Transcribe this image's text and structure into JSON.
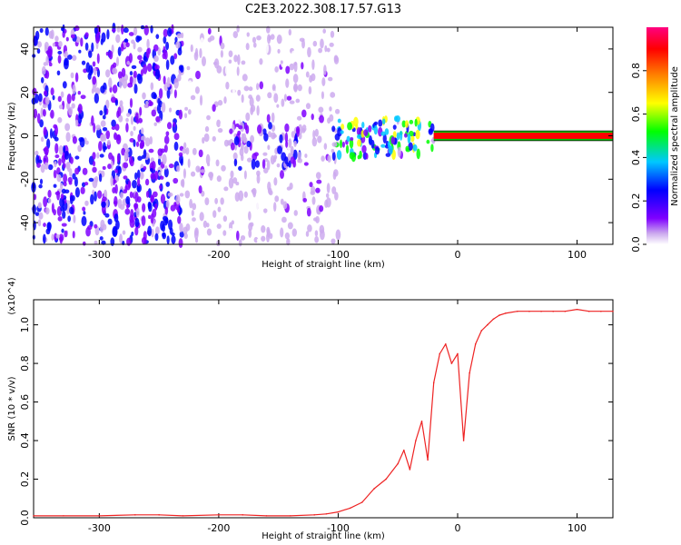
{
  "title": "C2E3.2022.308.17.57.G13",
  "chart_data": [
    {
      "type": "heatmap",
      "xlabel": "Height of straight line (km)",
      "ylabel": "Frequency (Hz)",
      "xlim": [
        -355,
        130
      ],
      "ylim": [
        -50,
        50
      ],
      "xticks": [
        -300,
        -200,
        -100,
        0,
        100
      ],
      "yticks": [
        -40,
        -20,
        0,
        20,
        40
      ],
      "grid": false,
      "colorbar": {
        "label": "Normalized spectral amplitude",
        "range": [
          0,
          1
        ],
        "ticks": [
          0.0,
          0.2,
          0.4,
          0.6,
          0.8
        ],
        "colormap": [
          "#ffffff",
          "#ccaaee",
          "#7f00ff",
          "#0000ff",
          "#00c8ff",
          "#00ff00",
          "#ffff00",
          "#ff8000",
          "#ff0000",
          "#ff0080"
        ]
      },
      "regions": [
        {
          "x": [
            -355,
            -230
          ],
          "freq": [
            -50,
            50
          ],
          "amplitude": 0.25
        },
        {
          "x": [
            -230,
            -100
          ],
          "freq": [
            -50,
            50
          ],
          "amplitude": 0.12
        },
        {
          "x": [
            -190,
            -130
          ],
          "freq": [
            -15,
            5
          ],
          "amplitude": 0.25
        },
        {
          "x": [
            -105,
            -20
          ],
          "freq": [
            -10,
            8
          ],
          "amplitude": 0.45
        },
        {
          "x": [
            -20,
            130
          ],
          "freq": [
            -1,
            1
          ],
          "amplitude": 0.95
        }
      ]
    },
    {
      "type": "line",
      "xlabel": "Height of straight line (km)",
      "ylabel": "SNR (10 * v/v)",
      "y_multiplier": "(x10^4)",
      "xlim": [
        -355,
        130
      ],
      "ylim": [
        0,
        1.13
      ],
      "xticks": [
        -300,
        -200,
        -100,
        0,
        100
      ],
      "yticks": [
        0.0,
        0.2,
        0.4,
        0.6,
        0.8,
        1.0
      ],
      "grid": false,
      "color": "#ee2222",
      "series": [
        {
          "x": [
            -355,
            -330,
            -300,
            -270,
            -250,
            -230,
            -200,
            -180,
            -160,
            -140,
            -120,
            -110,
            -100,
            -90,
            -80,
            -70,
            -60,
            -50,
            -45,
            -40,
            -35,
            -30,
            -25,
            -20,
            -15,
            -10,
            -5,
            0,
            5,
            10,
            15,
            20,
            25,
            30,
            35,
            40,
            50,
            60,
            70,
            80,
            90,
            100,
            110,
            120,
            130
          ],
          "y": [
            0.01,
            0.01,
            0.01,
            0.015,
            0.015,
            0.01,
            0.015,
            0.015,
            0.01,
            0.01,
            0.015,
            0.02,
            0.03,
            0.05,
            0.08,
            0.15,
            0.2,
            0.28,
            0.35,
            0.25,
            0.4,
            0.5,
            0.3,
            0.7,
            0.85,
            0.9,
            0.8,
            0.85,
            0.4,
            0.75,
            0.9,
            0.97,
            1.0,
            1.03,
            1.05,
            1.06,
            1.07,
            1.07,
            1.07,
            1.07,
            1.07,
            1.08,
            1.07,
            1.07,
            1.07
          ]
        }
      ]
    }
  ]
}
